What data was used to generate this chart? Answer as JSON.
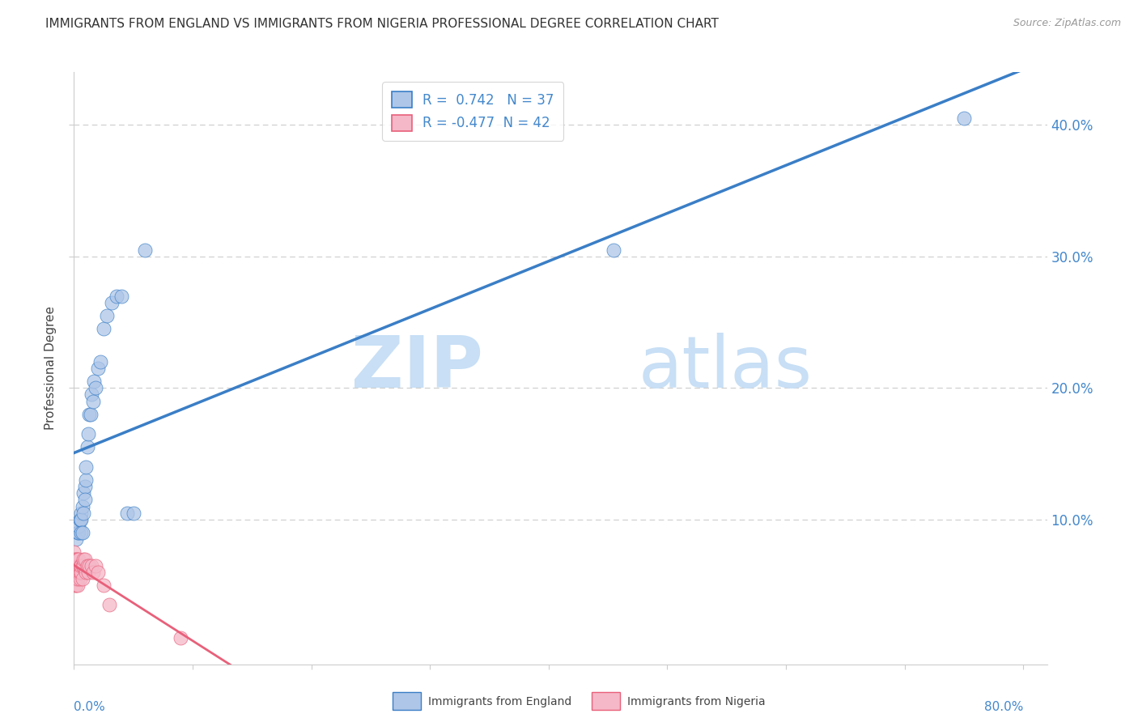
{
  "title": "IMMIGRANTS FROM ENGLAND VS IMMIGRANTS FROM NIGERIA PROFESSIONAL DEGREE CORRELATION CHART",
  "source": "Source: ZipAtlas.com",
  "ylabel": "Professional Degree",
  "legend_england": "Immigrants from England",
  "legend_nigeria": "Immigrants from Nigeria",
  "r_england": 0.742,
  "n_england": 37,
  "r_nigeria": -0.477,
  "n_nigeria": 42,
  "color_england": "#aec6e8",
  "color_nigeria": "#f5b8c8",
  "line_england": "#3a7ec6",
  "line_nigeria": "#e8607a",
  "england_x": [
    0.002,
    0.003,
    0.004,
    0.004,
    0.005,
    0.005,
    0.006,
    0.006,
    0.006,
    0.007,
    0.007,
    0.008,
    0.008,
    0.009,
    0.009,
    0.01,
    0.01,
    0.011,
    0.012,
    0.013,
    0.014,
    0.015,
    0.016,
    0.017,
    0.018,
    0.02,
    0.022,
    0.025,
    0.028,
    0.032,
    0.036,
    0.04,
    0.045,
    0.05,
    0.06,
    0.455,
    0.75
  ],
  "england_y": [
    0.085,
    0.09,
    0.09,
    0.095,
    0.1,
    0.1,
    0.105,
    0.1,
    0.09,
    0.11,
    0.09,
    0.12,
    0.105,
    0.125,
    0.115,
    0.13,
    0.14,
    0.155,
    0.165,
    0.18,
    0.18,
    0.195,
    0.19,
    0.205,
    0.2,
    0.215,
    0.22,
    0.245,
    0.255,
    0.265,
    0.27,
    0.27,
    0.105,
    0.105,
    0.305,
    0.305,
    0.405
  ],
  "nigeria_x": [
    0.0,
    0.0,
    0.0,
    0.001,
    0.001,
    0.001,
    0.001,
    0.001,
    0.002,
    0.002,
    0.002,
    0.002,
    0.002,
    0.003,
    0.003,
    0.003,
    0.003,
    0.003,
    0.004,
    0.004,
    0.004,
    0.005,
    0.005,
    0.005,
    0.006,
    0.006,
    0.007,
    0.007,
    0.008,
    0.008,
    0.009,
    0.01,
    0.011,
    0.012,
    0.013,
    0.015,
    0.016,
    0.018,
    0.02,
    0.025,
    0.03,
    0.09
  ],
  "nigeria_y": [
    0.065,
    0.07,
    0.075,
    0.05,
    0.055,
    0.06,
    0.065,
    0.07,
    0.05,
    0.055,
    0.06,
    0.065,
    0.07,
    0.05,
    0.055,
    0.06,
    0.065,
    0.07,
    0.06,
    0.065,
    0.07,
    0.055,
    0.06,
    0.065,
    0.06,
    0.065,
    0.055,
    0.065,
    0.065,
    0.07,
    0.07,
    0.06,
    0.065,
    0.06,
    0.065,
    0.065,
    0.06,
    0.065,
    0.06,
    0.05,
    0.035,
    0.01
  ],
  "xlim": [
    0.0,
    0.82
  ],
  "ylim": [
    -0.01,
    0.44
  ],
  "yticks": [
    0.1,
    0.2,
    0.3,
    0.4
  ],
  "ytick_labels": [
    "10.0%",
    "20.0%",
    "30.0%",
    "40.0%"
  ],
  "xtick_positions": [
    0.0,
    0.1,
    0.2,
    0.3,
    0.4,
    0.5,
    0.6,
    0.7,
    0.8
  ],
  "grid_color": "#cccccc",
  "title_fontsize": 11,
  "axis_label_color": "#4488cc",
  "watermark_zip_color": "#c8dff5",
  "watermark_atlas_color": "#c8dff5"
}
